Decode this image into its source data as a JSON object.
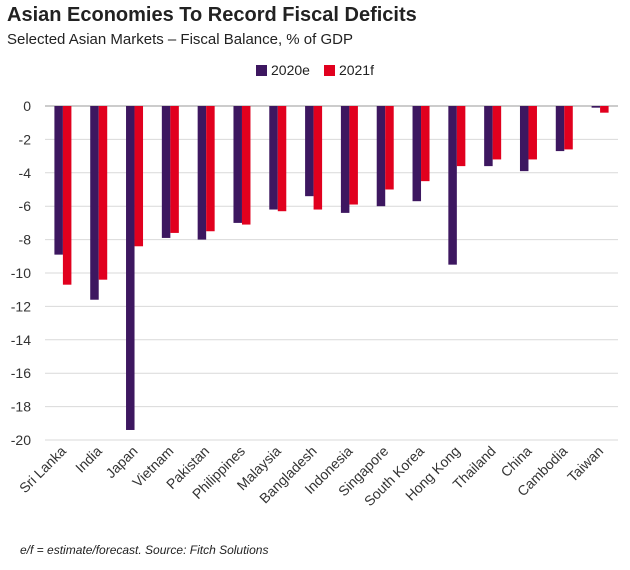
{
  "title": "Asian Economies To Record Fiscal Deficits",
  "subtitle": "Selected Asian Markets – Fiscal Balance, % of GDP",
  "footnote": "e/f = estimate/forecast. Source: Fitch Solutions",
  "colors": {
    "series_2020": "#3d1760",
    "series_2021": "#e1001e",
    "grid": "#d9d9d9",
    "axis": "#999999"
  },
  "chart_data": {
    "type": "bar",
    "title": "Asian Economies To Record Fiscal Deficits",
    "subtitle": "Selected Asian Markets – Fiscal Balance, % of GDP",
    "xlabel": "",
    "ylabel": "",
    "ylim": [
      -20,
      0
    ],
    "yticks": [
      0,
      -2,
      -4,
      -6,
      -8,
      -10,
      -12,
      -14,
      -16,
      -18,
      -20
    ],
    "grid": true,
    "legend_position": "top-center",
    "categories": [
      "Sri Lanka",
      "India",
      "Japan",
      "Vietnam",
      "Pakistan",
      "Philippines",
      "Malaysia",
      "Bangladesh",
      "Indonesia",
      "Singapore",
      "South Korea",
      "Hong Kong",
      "Thailand",
      "China",
      "Cambodia",
      "Taiwan"
    ],
    "series": [
      {
        "name": "2020e",
        "values": [
          -8.9,
          -11.6,
          -19.4,
          -7.9,
          -8.0,
          -7.0,
          -6.2,
          -5.4,
          -6.4,
          -6.0,
          -5.7,
          -9.5,
          -3.6,
          -3.9,
          -2.7,
          -0.1
        ]
      },
      {
        "name": "2021f",
        "values": [
          -10.7,
          -10.4,
          -8.4,
          -7.6,
          -7.5,
          -7.1,
          -6.3,
          -6.2,
          -5.9,
          -5.0,
          -4.5,
          -3.6,
          -3.2,
          -3.2,
          -2.6,
          -0.4
        ]
      }
    ]
  }
}
